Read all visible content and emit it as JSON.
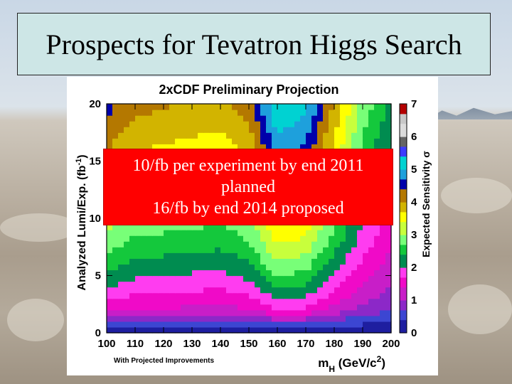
{
  "slide": {
    "title": "Prospects for Tevatron Higgs Search",
    "overlay_lines": [
      "10/fb per experiment by end 2011",
      "planned",
      "16/fb by end 2014 proposed"
    ],
    "colors": {
      "title_bg": "#cde6e6",
      "overlay_bg": "#ff0000",
      "overlay_text": "#ffffff"
    }
  },
  "chart_data": {
    "type": "heatmap",
    "title": "2xCDF Preliminary Projection",
    "xlabel": "m_H (GeV/c^2)",
    "ylabel": "Analyzed Lumi/Exp. (fb^-1)",
    "zlabel": "Expected Sensitivity σ",
    "footnote": "With Projected Improvements",
    "xlim": [
      100,
      200
    ],
    "ylim": [
      0,
      20
    ],
    "zlim": [
      0,
      7
    ],
    "x_ticks": [
      "100",
      "110",
      "120",
      "130",
      "140",
      "150",
      "160",
      "170",
      "180",
      "190",
      "200"
    ],
    "y_ticks": [
      "0",
      "5",
      "10",
      "15",
      "20"
    ],
    "z_ticks": [
      "0",
      "1",
      "2",
      "3",
      "4",
      "5",
      "6",
      "7"
    ],
    "color_scale": [
      "#1e1ea0",
      "#3c46d2",
      "#8c28c8",
      "#c81ec8",
      "#f00ac8",
      "#ff3cf0",
      "#008c50",
      "#14c83c",
      "#78ff78",
      "#c8ff3c",
      "#ffff00",
      "#d2b400",
      "#b47800",
      "#0000aa",
      "#1ea0dc",
      "#00d2d2",
      "#3c3cff",
      "#646464",
      "#dcdcdc",
      "#c8c8c8",
      "#b40000"
    ],
    "sensitivity_grid": {
      "mass_points": [
        100,
        110,
        120,
        130,
        140,
        150,
        160,
        170,
        180,
        190,
        200
      ],
      "lumi_fb": [
        0,
        2,
        4,
        6,
        8,
        10,
        12,
        14,
        16,
        18,
        20
      ],
      "sensitivity_sigma": [
        [
          0.0,
          0.0,
          0.0,
          0.0,
          0.0,
          0.0,
          0.0,
          0.0,
          0.0,
          0.0,
          0.0
        ],
        [
          1.4,
          1.3,
          1.3,
          1.25,
          1.2,
          1.3,
          1.7,
          1.6,
          1.2,
          0.9,
          0.7
        ],
        [
          2.0,
          1.85,
          1.8,
          1.75,
          1.7,
          1.85,
          2.4,
          2.3,
          1.75,
          1.3,
          1.0
        ],
        [
          2.45,
          2.25,
          2.2,
          2.15,
          2.1,
          2.3,
          2.95,
          2.8,
          2.15,
          1.6,
          1.2
        ],
        [
          2.85,
          2.6,
          2.55,
          2.5,
          2.45,
          2.65,
          3.4,
          3.25,
          2.5,
          1.85,
          1.4
        ],
        [
          3.15,
          2.9,
          2.85,
          2.8,
          2.75,
          2.95,
          3.8,
          3.6,
          2.8,
          2.05,
          1.55
        ],
        [
          3.45,
          3.2,
          3.15,
          3.05,
          3.0,
          3.25,
          4.15,
          3.95,
          3.05,
          2.25,
          1.7
        ],
        [
          3.75,
          3.45,
          3.4,
          3.3,
          3.25,
          3.5,
          4.5,
          4.3,
          3.3,
          2.45,
          1.85
        ],
        [
          4.0,
          3.7,
          3.6,
          3.55,
          3.5,
          3.75,
          4.8,
          4.6,
          3.55,
          2.6,
          1.95
        ],
        [
          4.25,
          3.9,
          3.85,
          3.75,
          3.7,
          3.95,
          5.1,
          4.85,
          3.75,
          2.75,
          2.1
        ],
        [
          4.45,
          4.1,
          4.05,
          3.95,
          3.9,
          4.2,
          5.35,
          5.1,
          3.95,
          2.9,
          2.2
        ]
      ]
    }
  }
}
